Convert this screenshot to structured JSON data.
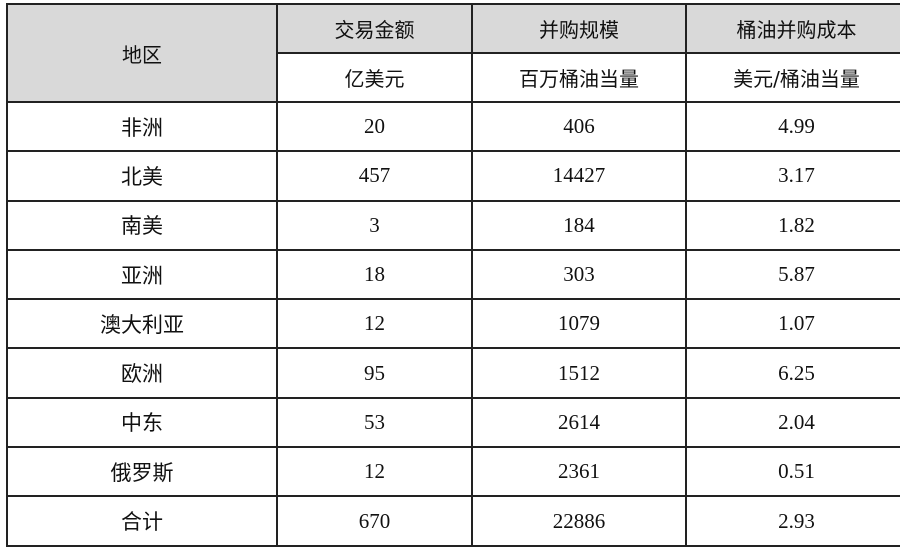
{
  "table": {
    "header": {
      "region": "地区",
      "columns": [
        {
          "title": "交易金额",
          "unit": "亿美元"
        },
        {
          "title": "并购规模",
          "unit": "百万桶油当量"
        },
        {
          "title": "桶油并购成本",
          "unit": "美元/桶油当量"
        }
      ]
    },
    "rows": [
      {
        "region": "非洲",
        "amount": "20",
        "scale": "406",
        "cost": "4.99"
      },
      {
        "region": "北美",
        "amount": "457",
        "scale": "14427",
        "cost": "3.17"
      },
      {
        "region": "南美",
        "amount": "3",
        "scale": "184",
        "cost": "1.82"
      },
      {
        "region": "亚洲",
        "amount": "18",
        "scale": "303",
        "cost": "5.87"
      },
      {
        "region": "澳大利亚",
        "amount": "12",
        "scale": "1079",
        "cost": "1.07"
      },
      {
        "region": "欧洲",
        "amount": "95",
        "scale": "1512",
        "cost": "6.25"
      },
      {
        "region": "中东",
        "amount": "53",
        "scale": "2614",
        "cost": "2.04"
      },
      {
        "region": "俄罗斯",
        "amount": "12",
        "scale": "2361",
        "cost": "0.51"
      },
      {
        "region": "合计",
        "amount": "670",
        "scale": "22886",
        "cost": "2.93"
      }
    ]
  },
  "colors": {
    "header_bg": "#d9d9d9",
    "border": "#222222"
  }
}
